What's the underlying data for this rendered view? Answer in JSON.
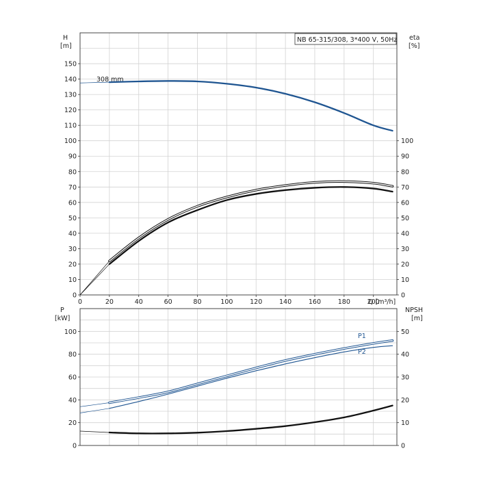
{
  "chart_data": [
    {
      "type": "line",
      "title": "NB 65-315/308, 3*400 V, 50Hz",
      "xlabel": "Q [m³/h]",
      "xlim": [
        0,
        216
      ],
      "x_ticks": [
        "0",
        "20",
        "40",
        "60",
        "80",
        "100",
        "120",
        "140",
        "160",
        "180",
        "200"
      ],
      "left_axis": {
        "label_line1": "H",
        "label_line2": "[m]",
        "ylim": [
          0,
          170
        ],
        "ticks": [
          "0",
          "10",
          "20",
          "30",
          "40",
          "50",
          "60",
          "70",
          "80",
          "90",
          "100",
          "110",
          "120",
          "130",
          "140",
          "150"
        ]
      },
      "right_axis": {
        "label_line1": "eta",
        "label_line2": "[%]",
        "ylim": [
          0,
          170
        ],
        "ticks": [
          "0",
          "10",
          "20",
          "30",
          "40",
          "50",
          "60",
          "70",
          "80",
          "90",
          "100"
        ]
      },
      "grid": true,
      "annotations": [
        "308 mm"
      ],
      "series": [
        {
          "axis": "left",
          "color": "#1f5591",
          "style": "thick",
          "x": [
            0,
            20,
            40,
            60,
            80,
            100,
            120,
            140,
            160,
            180,
            200,
            213
          ],
          "y": [
            137.5,
            138,
            138.5,
            138.8,
            138.5,
            137,
            134.5,
            130.5,
            125,
            118,
            110,
            106.5
          ]
        },
        {
          "axis": "right",
          "color": "#111111",
          "style": "double",
          "x": [
            0,
            20,
            40,
            60,
            80,
            100,
            120,
            140,
            160,
            180,
            200,
            213
          ],
          "y": [
            0,
            22,
            37,
            49,
            57.5,
            63.5,
            68,
            71,
            73,
            73.5,
            72.5,
            70.5
          ]
        },
        {
          "axis": "right",
          "color": "#111111",
          "style": "thick",
          "x": [
            0,
            20,
            40,
            60,
            80,
            100,
            120,
            140,
            160,
            180,
            200,
            213
          ],
          "y": [
            0,
            20,
            35,
            47,
            55,
            61.5,
            65.5,
            68,
            69.5,
            70,
            69,
            67
          ]
        }
      ]
    },
    {
      "type": "line",
      "xlim": [
        0,
        216
      ],
      "left_axis": {
        "label_line1": "P",
        "label_line2": "[kW]",
        "ylim": [
          0,
          120
        ],
        "ticks": [
          "0",
          "20",
          "40",
          "60",
          "80",
          "100"
        ]
      },
      "right_axis": {
        "label_line1": "NPSH",
        "label_line2": "[m]",
        "ylim": [
          0,
          60
        ],
        "ticks": [
          "0",
          "10",
          "20",
          "30",
          "40",
          "50"
        ]
      },
      "grid": true,
      "series": [
        {
          "name": "P1",
          "axis": "left",
          "color": "#1f5591",
          "style": "double",
          "x": [
            0,
            20,
            40,
            60,
            80,
            100,
            120,
            140,
            160,
            180,
            200,
            213
          ],
          "y": [
            34,
            37.5,
            42,
            47,
            54,
            61,
            68,
            74.5,
            80,
            85,
            89.5,
            92
          ]
        },
        {
          "name": "P2",
          "axis": "left",
          "color": "#1f5591",
          "style": "thin",
          "x": [
            0,
            20,
            40,
            60,
            80,
            100,
            120,
            140,
            160,
            180,
            200,
            213
          ],
          "y": [
            28.5,
            32.5,
            38.5,
            45,
            52,
            59,
            65.5,
            71.5,
            77,
            82,
            86,
            87.5
          ]
        },
        {
          "axis": "right",
          "color": "#111111",
          "style": "thick",
          "x": [
            0,
            20,
            40,
            60,
            80,
            100,
            120,
            140,
            160,
            180,
            200,
            213
          ],
          "y": [
            6.3,
            5.7,
            5.3,
            5.3,
            5.6,
            6.3,
            7.3,
            8.5,
            10.2,
            12.3,
            15.3,
            17.5
          ]
        }
      ]
    }
  ]
}
